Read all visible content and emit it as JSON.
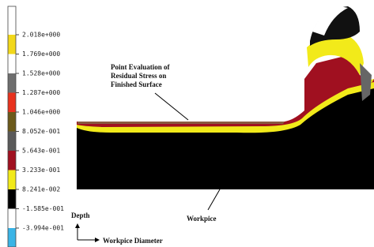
{
  "legend": {
    "labels": [
      "2.018e+000",
      "1.769e+000",
      "1.528e+000",
      "1.287e+000",
      "1.046e+000",
      "8.052e-001",
      "5.643e-001",
      "3.233e-001",
      "8.241e-002",
      "-1.585e-001",
      "-3.994e-001"
    ]
  },
  "annotations": {
    "surface_note": [
      "Point Evaluation of",
      "Residual Stress on",
      "Finished Surface"
    ],
    "workpiece": "Workpice",
    "depth": "Depth",
    "diameter": "Workpice Diameter"
  }
}
